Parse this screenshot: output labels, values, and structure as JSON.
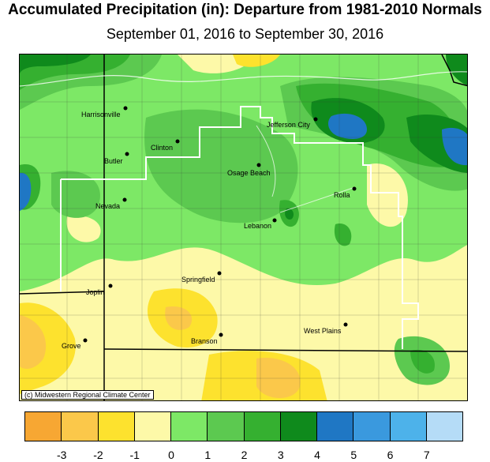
{
  "title": "Accumulated Precipitation (in): Departure from 1981-2010 Normals",
  "subtitle": "September 01, 2016 to September 30, 2016",
  "credit": "(c) Midwestern Regional Climate Center",
  "cities": [
    {
      "name": "Harrisonville"
    },
    {
      "name": "Jefferson City"
    },
    {
      "name": "Clinton"
    },
    {
      "name": "Butler"
    },
    {
      "name": "Osage Beach"
    },
    {
      "name": "Rolla"
    },
    {
      "name": "Nevada"
    },
    {
      "name": "Lebanon"
    },
    {
      "name": "Springfield"
    },
    {
      "name": "Joplin"
    },
    {
      "name": "West Plains"
    },
    {
      "name": "Branson"
    },
    {
      "name": "Grove"
    }
  ],
  "legend": {
    "colors": [
      "#f7a733",
      "#fbc84a",
      "#fde22e",
      "#fdf9a8",
      "#7de866",
      "#5cc950",
      "#35b030",
      "#0f8a1c",
      "#1f77c4",
      "#3a99de",
      "#4db2ea",
      "#b5dcf7"
    ],
    "ticks": [
      "-3",
      "-2",
      "-1",
      "0",
      "1",
      "2",
      "3",
      "4",
      "5",
      "6",
      "7"
    ]
  }
}
